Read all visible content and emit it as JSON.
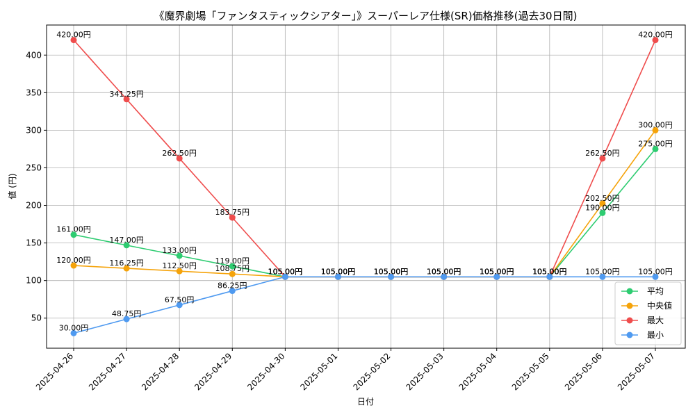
{
  "chart_data": {
    "type": "line",
    "title": "《魔界劇場「ファンタスティックシアター」》スーパーレア仕様(SR)価格推移(過去30日間)",
    "xlabel": "日付",
    "ylabel": "値 (円)",
    "categories": [
      "2025-04-26",
      "2025-04-27",
      "2025-04-28",
      "2025-04-29",
      "2025-04-30",
      "2025-05-01",
      "2025-05-02",
      "2025-05-03",
      "2025-05-04",
      "2025-05-05",
      "2025-05-06",
      "2025-05-07"
    ],
    "ylim": [
      10,
      440
    ],
    "yticks": [
      50,
      100,
      150,
      200,
      250,
      300,
      350,
      400
    ],
    "grid": true,
    "legend_position": "bottom-right",
    "label_suffix": "円",
    "series": [
      {
        "name": "平均",
        "color": "#2ecc71",
        "values": [
          161.0,
          147.0,
          133.0,
          119.0,
          105.0,
          105.0,
          105.0,
          105.0,
          105.0,
          105.0,
          190.0,
          275.0
        ],
        "labels": [
          "161.00円",
          "147.00円",
          "133.00円",
          "119.00円",
          "105.00円",
          "105.00円",
          "105.00円",
          "105.00円",
          "105.00円",
          "105.00円",
          "190.00円",
          "275.00円"
        ]
      },
      {
        "name": "中央値",
        "color": "#f5a30a",
        "values": [
          120.0,
          116.25,
          112.5,
          108.75,
          105.0,
          105.0,
          105.0,
          105.0,
          105.0,
          105.0,
          202.5,
          300.0
        ],
        "labels": [
          "120.00円",
          "116.25円",
          "112.50円",
          "108.75円",
          "105.00円",
          "105.00円",
          "105.00円",
          "105.00円",
          "105.00円",
          "105.00円",
          "202.50円",
          "300.00円"
        ]
      },
      {
        "name": "最大",
        "color": "#ef4d4d",
        "values": [
          420.0,
          341.25,
          262.5,
          183.75,
          105.0,
          105.0,
          105.0,
          105.0,
          105.0,
          105.0,
          262.5,
          420.0
        ],
        "labels": [
          "420.00円",
          "341.25円",
          "262.50円",
          "183.75円",
          "105.00円",
          "105.00円",
          "105.00円",
          "105.00円",
          "105.00円",
          "105.00円",
          "262.50円",
          "420.00円"
        ]
      },
      {
        "name": "最小",
        "color": "#4f9af0",
        "values": [
          30.0,
          48.75,
          67.5,
          86.25,
          105.0,
          105.0,
          105.0,
          105.0,
          105.0,
          105.0,
          105.0,
          105.0
        ],
        "labels": [
          "30.00円",
          "48.75円",
          "67.50円",
          "86.25円",
          "105.00円",
          "105.00円",
          "105.00円",
          "105.00円",
          "105.00円",
          "105.00円",
          "105.00円",
          "105.00円"
        ]
      }
    ]
  }
}
